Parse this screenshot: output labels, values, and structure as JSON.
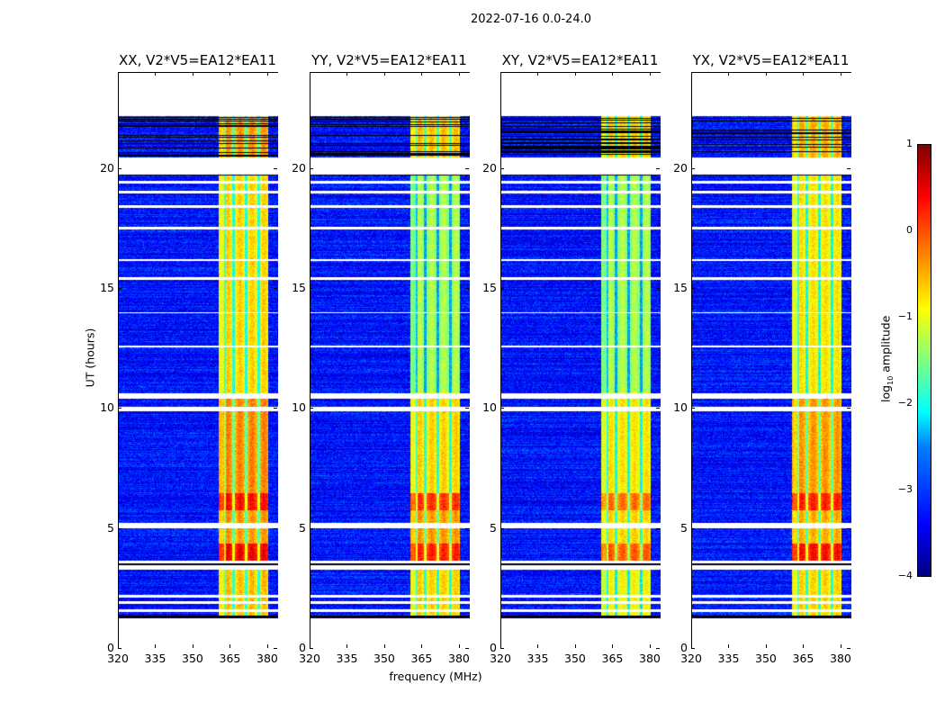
{
  "chart_data": {
    "type": "heatmap",
    "title": "2022-07-16 0.0-24.0",
    "xlabel": "frequency (MHz)",
    "ylabel": "UT (hours)",
    "xlim": [
      320,
      384
    ],
    "ylim": [
      0,
      24
    ],
    "xticks": [
      "320",
      "335",
      "350",
      "365",
      "380"
    ],
    "yticks": [
      "0",
      "5",
      "10",
      "15",
      "20"
    ],
    "colorbar": {
      "label": "log10 amplitude",
      "label_main": "log",
      "label_sub": "10",
      "label_rest": " amplitude",
      "range": [
        -4,
        1
      ],
      "ticks": [
        "1",
        "0",
        "−1",
        "−2",
        "−3",
        "−4"
      ],
      "colormap": "jet"
    },
    "data_range_hours": [
      1.3,
      22.2
    ],
    "rfi_band_mhz": [
      360,
      380
    ],
    "rfi_notches_mhz": [
      366,
      371,
      376
    ],
    "background_level": -3.3,
    "white_gaps_hours": [
      [
        1.55,
        1.65
      ],
      [
        1.9,
        2.0
      ],
      [
        2.15,
        2.25
      ],
      [
        3.3,
        3.5
      ],
      [
        3.6,
        3.7
      ],
      [
        5.05,
        5.25
      ],
      [
        9.9,
        10.1
      ],
      [
        10.45,
        10.65
      ],
      [
        12.6,
        12.66
      ],
      [
        14.0,
        14.06
      ],
      [
        15.4,
        15.5
      ],
      [
        16.2,
        16.26
      ],
      [
        17.5,
        17.6
      ],
      [
        18.4,
        18.5
      ],
      [
        19.0,
        19.1
      ],
      [
        19.4,
        19.5
      ],
      [
        19.8,
        20.5
      ]
    ],
    "panels": [
      {
        "title": "XX, V2*V5=EA12*EA11",
        "rfi_levels": [
          [
            1.3,
            3.3,
            -0.7
          ],
          [
            3.7,
            4.4,
            0.3
          ],
          [
            4.4,
            5.8,
            -0.5
          ],
          [
            5.8,
            6.5,
            0.2
          ],
          [
            6.5,
            10.5,
            -0.4
          ],
          [
            10.7,
            19.8,
            -0.8
          ],
          [
            20.5,
            22.2,
            -0.5
          ]
        ]
      },
      {
        "title": "YY, V2*V5=EA12*EA11",
        "rfi_levels": [
          [
            1.3,
            3.3,
            -0.8
          ],
          [
            3.7,
            4.4,
            0.1
          ],
          [
            4.4,
            5.8,
            -0.5
          ],
          [
            5.8,
            6.5,
            0.0
          ],
          [
            6.5,
            10.5,
            -0.8
          ],
          [
            10.7,
            19.8,
            -1.4
          ],
          [
            20.5,
            22.2,
            -0.7
          ]
        ]
      },
      {
        "title": "XY, V2*V5=EA12*EA11",
        "rfi_levels": [
          [
            1.3,
            3.3,
            -1.0
          ],
          [
            3.7,
            4.4,
            -0.2
          ],
          [
            4.4,
            5.8,
            -0.8
          ],
          [
            5.8,
            6.5,
            -0.3
          ],
          [
            6.5,
            10.5,
            -0.9
          ],
          [
            10.7,
            19.8,
            -1.4
          ],
          [
            20.5,
            22.2,
            -0.8
          ]
        ]
      },
      {
        "title": "YX, V2*V5=EA12*EA11",
        "rfi_levels": [
          [
            1.3,
            3.3,
            -0.8
          ],
          [
            3.7,
            4.4,
            0.2
          ],
          [
            4.4,
            5.8,
            -0.6
          ],
          [
            5.8,
            6.5,
            0.1
          ],
          [
            6.5,
            10.5,
            -0.5
          ],
          [
            10.7,
            19.8,
            -0.9
          ],
          [
            20.5,
            22.2,
            -0.6
          ]
        ]
      }
    ]
  }
}
